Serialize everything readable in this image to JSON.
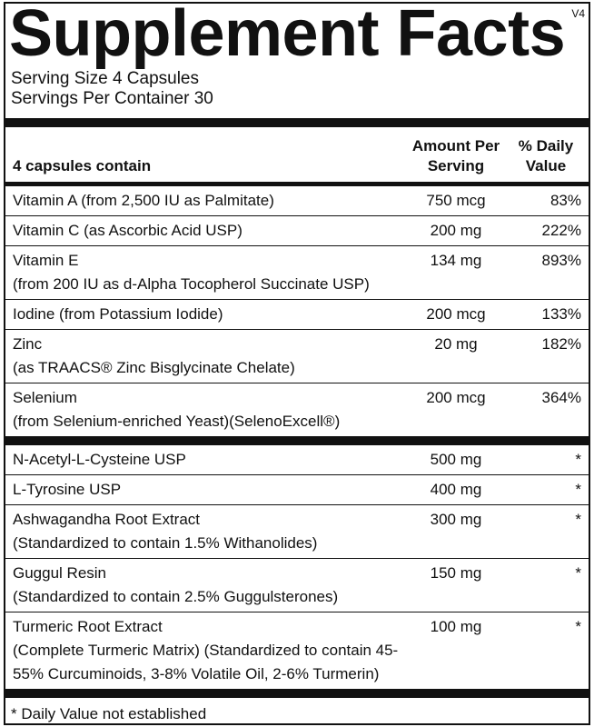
{
  "version": "V4",
  "title": "Supplement Facts",
  "serving_size": "Serving Size 4 Capsules",
  "servings_per_container": "Servings Per Container 30",
  "header": {
    "label": "4 capsules contain",
    "amount": "Amount Per Serving",
    "dv": "% Daily Value"
  },
  "sections": [
    {
      "rows": [
        {
          "name": "Vitamin A (from 2,500 IU as Palmitate)",
          "amount": "750 mcg",
          "dv": "83%"
        },
        {
          "name": "Vitamin C (as Ascorbic Acid USP)",
          "amount": "200 mg",
          "dv": "222%"
        },
        {
          "name": "Vitamin E",
          "detail": "(from 200 IU as d-Alpha Tocopherol Succinate USP)",
          "amount": "134 mg",
          "dv": "893%"
        },
        {
          "name": "Iodine (from Potassium Iodide)",
          "amount": "200 mcg",
          "dv": "133%"
        },
        {
          "name": "Zinc",
          "detail": "(as TRAACS® Zinc Bisglycinate Chelate)",
          "amount": "20 mg",
          "dv": "182%"
        },
        {
          "name": "Selenium",
          "detail": "(from Selenium-enriched Yeast)(SelenoExcell®)",
          "amount": "200 mcg",
          "dv": "364%"
        }
      ]
    },
    {
      "rows": [
        {
          "name": "N-Acetyl-L-Cysteine USP",
          "amount": "500 mg",
          "dv": "*"
        },
        {
          "name": "L-Tyrosine USP",
          "amount": "400 mg",
          "dv": "*"
        },
        {
          "name": "Ashwagandha Root Extract",
          "detail": "(Standardized to contain 1.5% Withanolides)",
          "amount": "300 mg",
          "dv": "*"
        },
        {
          "name": "Guggul Resin",
          "detail": "(Standardized to contain 2.5% Guggulsterones)",
          "amount": "150 mg",
          "dv": "*"
        },
        {
          "name": "Turmeric Root Extract",
          "detail": "(Complete Turmeric Matrix) (Standardized to contain 45-55% Curcuminoids, 3-8% Volatile Oil, 2-6% Turmerin)",
          "amount": "100 mg",
          "dv": "*"
        }
      ]
    }
  ],
  "footnote": "* Daily Value not established"
}
